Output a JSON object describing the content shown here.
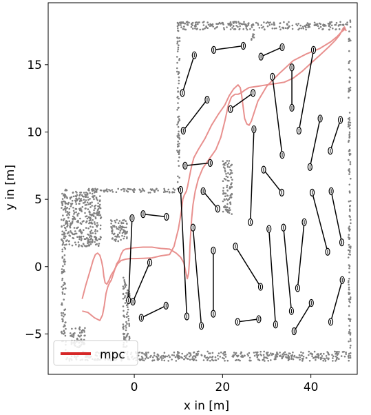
{
  "chart_data": {
    "type": "line",
    "xlabel": "x in [m]",
    "ylabel": "y in [m]",
    "xlim": [
      -19.5,
      50.5
    ],
    "ylim": [
      -8.0,
      19.6
    ],
    "xticks": [
      0,
      20,
      40
    ],
    "yticks": [
      -5,
      0,
      5,
      10,
      15
    ],
    "grid": false,
    "legend": {
      "position": "bottom-left",
      "entries": [
        {
          "label": "mpc",
          "color": "#d62728"
        }
      ]
    },
    "colors": {
      "trajectory": "#e8908e",
      "obstacles": "#000000",
      "walls": "#808080",
      "legend_line": "#d62728"
    },
    "series": [
      {
        "name": "mpc",
        "color": "#e8908e",
        "x": [
          -11.8,
          -11.0,
          -10.0,
          -9.3,
          -8.8,
          -8.3,
          -7.8,
          -7.4,
          -7.1,
          -6.9,
          -6.6,
          -6.2,
          -5.7,
          -5.2,
          -4.6,
          -3.8,
          -3.0,
          -2.0,
          -1.0,
          0.0,
          2.0,
          4.0,
          6.0,
          8.0,
          9.0,
          10.0,
          10.6,
          11.0,
          11.3,
          11.8,
          12.1,
          12.4,
          12.7,
          13.0,
          13.5,
          14.5,
          16.0,
          17.5,
          19.0,
          20.5,
          21.5,
          22.5,
          23.5,
          24.0,
          24.3,
          24.6,
          25.0,
          25.5,
          26.0,
          26.5,
          27.0,
          28.0,
          30.0,
          33.0,
          36.0,
          39.0,
          42.0,
          44.5,
          46.0,
          46.8,
          47.2,
          47.6,
          48.0
        ],
        "y": [
          -2.4,
          -1.4,
          -0.3,
          0.5,
          0.9,
          1.0,
          0.85,
          0.4,
          -0.1,
          -0.7,
          -1.2,
          -1.3,
          -1.0,
          -0.6,
          -0.3,
          0.2,
          0.45,
          0.55,
          0.6,
          0.6,
          0.62,
          0.65,
          0.8,
          0.9,
          1.5,
          2.8,
          4.0,
          5.0,
          5.3,
          5.6,
          6.0,
          6.5,
          7.0,
          7.5,
          8.1,
          8.7,
          9.5,
          10.5,
          11.3,
          12.0,
          12.7,
          13.2,
          13.5,
          13.3,
          12.8,
          12.0,
          11.0,
          10.6,
          10.5,
          10.8,
          11.3,
          12.3,
          13.4,
          14.4,
          15.3,
          15.8,
          16.2,
          16.7,
          17.1,
          17.4,
          17.5,
          17.6,
          17.6
        ]
      },
      {
        "name": "",
        "color": "#e8908e",
        "x": [
          -11.8,
          -10.5,
          -9.0,
          -7.8,
          -7.2,
          -6.8,
          -6.4,
          -6.0,
          -5.6,
          -5.2,
          -4.6,
          -4.0,
          -3.4,
          -3.0,
          -2.5,
          -2.0,
          -1.0,
          0.0,
          2.0,
          4.0,
          6.0,
          8.0,
          9.5,
          10.5,
          11.2,
          11.6,
          12.0,
          12.3,
          12.5,
          12.6,
          12.8,
          13.0,
          13.3,
          13.8,
          14.5,
          15.5,
          17.0,
          18.5,
          19.6,
          20.5,
          21.3,
          22.0,
          22.8,
          23.5,
          24.2,
          25.0,
          26.0,
          28.0,
          30.0,
          32.0,
          34.0,
          36.0,
          38.0,
          40.0,
          42.0,
          44.0,
          45.5,
          46.5,
          47.0,
          47.3,
          47.6,
          48.0
        ],
        "y": [
          -3.3,
          -3.4,
          -3.8,
          -4.0,
          -3.6,
          -2.9,
          -2.0,
          -1.5,
          -1.2,
          -1.0,
          -0.4,
          0.2,
          0.5,
          0.9,
          1.2,
          1.3,
          1.35,
          1.4,
          1.45,
          1.45,
          1.35,
          1.3,
          1.0,
          0.7,
          0.3,
          -0.3,
          -0.9,
          -0.5,
          0.5,
          1.5,
          2.6,
          3.6,
          4.6,
          5.6,
          6.5,
          7.3,
          8.0,
          8.7,
          9.6,
          10.8,
          12.0,
          12.6,
          12.8,
          12.8,
          12.9,
          13.1,
          13.3,
          13.4,
          13.5,
          13.6,
          13.7,
          14.0,
          14.5,
          15.1,
          15.7,
          16.3,
          16.8,
          17.2,
          17.5,
          17.7,
          17.8,
          17.5
        ]
      }
    ],
    "obstacle_segments": [
      [
        [
          -0.5,
          3.6
        ],
        [
          -1.3,
          -2.5
        ]
      ],
      [
        [
          2.0,
          3.9
        ],
        [
          7.3,
          3.7
        ]
      ],
      [
        [
          -0.3,
          -2.6
        ],
        [
          3.5,
          0.3
        ]
      ],
      [
        [
          1.6,
          -3.8
        ],
        [
          7.2,
          -2.9
        ]
      ],
      [
        [
          10.5,
          5.7
        ],
        [
          11.9,
          -3.7
        ]
      ],
      [
        [
          13.3,
          2.9
        ],
        [
          15.2,
          -4.4
        ]
      ],
      [
        [
          17.9,
          -3.5
        ],
        [
          17.9,
          1.2
        ]
      ],
      [
        [
          22.9,
          1.5
        ],
        [
          28.6,
          -1.5
        ]
      ],
      [
        [
          23.4,
          -4.1
        ],
        [
          28.2,
          -3.9
        ]
      ],
      [
        [
          30.5,
          2.8
        ],
        [
          32.0,
          -4.3
        ]
      ],
      [
        [
          33.8,
          2.9
        ],
        [
          35.6,
          -3.3
        ]
      ],
      [
        [
          37.0,
          -1.6
        ],
        [
          38.5,
          3.3
        ]
      ],
      [
        [
          36.2,
          -4.8
        ],
        [
          40.1,
          -2.7
        ]
      ],
      [
        [
          40.3,
          5.5
        ],
        [
          43.8,
          1.1
        ]
      ],
      [
        [
          44.6,
          5.6
        ],
        [
          47.0,
          1.8
        ]
      ],
      [
        [
          44.5,
          -4.1
        ],
        [
          47.1,
          -1.0
        ]
      ],
      [
        [
          26.3,
          3.3
        ],
        [
          27.1,
          10.2
        ]
      ],
      [
        [
          29.3,
          7.2
        ],
        [
          33.4,
          5.5
        ]
      ],
      [
        [
          11.5,
          7.5
        ],
        [
          17.2,
          7.7
        ]
      ],
      [
        [
          15.6,
          5.6
        ],
        [
          18.9,
          4.3
        ]
      ],
      [
        [
          11.1,
          10.1
        ],
        [
          16.5,
          12.4
        ]
      ],
      [
        [
          21.8,
          11.7
        ],
        [
          26.9,
          12.9
        ]
      ],
      [
        [
          31.3,
          14.1
        ],
        [
          33.5,
          8.3
        ]
      ],
      [
        [
          35.7,
          14.8
        ],
        [
          35.7,
          11.8
        ]
      ],
      [
        [
          37.3,
          10.1
        ],
        [
          40.6,
          16.1
        ]
      ],
      [
        [
          39.8,
          7.4
        ],
        [
          42.1,
          11.0
        ]
      ],
      [
        [
          44.4,
          8.6
        ],
        [
          46.7,
          10.9
        ]
      ],
      [
        [
          10.9,
          12.9
        ],
        [
          13.6,
          15.7
        ]
      ],
      [
        [
          18.0,
          16.1
        ],
        [
          24.7,
          16.4
        ]
      ],
      [
        [
          28.7,
          15.6
        ],
        [
          33.5,
          16.3
        ]
      ]
    ],
    "wall_regions": [
      [
        -16.5,
        -6.5,
        -15.5,
        5.8
      ],
      [
        -15.5,
        5.0,
        -7.5,
        5.8
      ],
      [
        -15.5,
        1.5,
        -7.5,
        5.0
      ],
      [
        -7.5,
        5.5,
        1.0,
        5.8
      ],
      [
        1.0,
        5.5,
        10.0,
        5.8
      ],
      [
        -15.5,
        -7.0,
        0.0,
        -6.3
      ],
      [
        0.0,
        -7.0,
        49.0,
        -6.3
      ],
      [
        48.5,
        -6.5,
        49.0,
        18.3
      ],
      [
        9.7,
        5.5,
        10.3,
        18.0
      ],
      [
        9.8,
        17.6,
        35.0,
        18.2
      ],
      [
        35.0,
        17.6,
        48.5,
        18.2
      ],
      [
        26.5,
        16.8,
        27.2,
        17.9
      ],
      [
        20.0,
        3.9,
        22.2,
        7.9
      ],
      [
        -5.5,
        1.8,
        -1.5,
        3.5
      ],
      [
        -2.6,
        -6.0,
        -1.0,
        -0.8
      ],
      [
        -15.0,
        -6.0,
        -11.0,
        -4.5
      ]
    ]
  }
}
